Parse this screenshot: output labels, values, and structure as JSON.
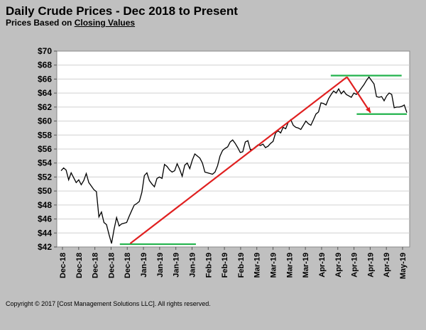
{
  "title": "Daily Crude Prices - Dec 2018 to Present",
  "subtitle_prefix": "Prices Based on ",
  "subtitle_emphasis": "Closing Values",
  "copyright": "Copyright © 2017 [Cost Management Solutions LLC]. All rights reserved.",
  "colors": {
    "background": "#c0c0c0",
    "plot_background": "#ffffff",
    "price_line": "#000000",
    "trend_line": "#e02020",
    "support_line": "#22b24c"
  },
  "chart_data": {
    "type": "line",
    "title": "Daily Crude Prices - Dec 2018 to Present",
    "ylabel": "",
    "xlabel": "",
    "ylim": [
      42,
      70
    ],
    "yticks": [
      "$42",
      "$44",
      "$46",
      "$48",
      "$50",
      "$52",
      "$54",
      "$56",
      "$58",
      "$60",
      "$62",
      "$64",
      "$66",
      "$68",
      "$70"
    ],
    "grid": "horizontal",
    "legend": "none",
    "x_tick_labels": [
      "Dec-18",
      "Dec-18",
      "Dec-18",
      "Dec-18",
      "Dec-18",
      "Jan-19",
      "Jan-19",
      "Jan-19",
      "Jan-19",
      "Feb-19",
      "Feb-19",
      "Feb-19",
      "Mar-19",
      "Mar-19",
      "Mar-19",
      "Mar-19",
      "Apr-19",
      "Apr-19",
      "Apr-19",
      "Apr-19",
      "Apr-19",
      "May-19"
    ],
    "series": [
      {
        "values": [
          52.9,
          53.3,
          53.0,
          51.6,
          52.6,
          51.9,
          51.2,
          51.6,
          50.9,
          51.5,
          52.5,
          51.2,
          50.7,
          50.2,
          49.9,
          46.3,
          47.0,
          45.5,
          45.2,
          43.8,
          42.5,
          44.5,
          46.2,
          45.0,
          45.3,
          45.4,
          45.5,
          46.4,
          47.2,
          48.0,
          48.2,
          48.5,
          49.8,
          52.2,
          52.6,
          51.5,
          51.0,
          50.6,
          51.8,
          52.0,
          51.8,
          53.8,
          53.5,
          53.0,
          52.7,
          52.9,
          53.9,
          53.1,
          52.1,
          53.7,
          54.0,
          53.2,
          54.4,
          55.3,
          55.0,
          54.7,
          54.0,
          52.7,
          52.6,
          52.5,
          52.4,
          52.7,
          53.6,
          55.0,
          55.8,
          56.1,
          56.3,
          57.0,
          57.3,
          56.8,
          56.2,
          55.5,
          55.6,
          57.0,
          57.2,
          55.9,
          56.0,
          56.3,
          56.6,
          56.5,
          56.7,
          56.2,
          56.4,
          56.8,
          57.1,
          58.3,
          58.6,
          58.3,
          59.1,
          58.9,
          59.8,
          60.2,
          59.4,
          59.1,
          59.0,
          58.8,
          59.4,
          60.0,
          59.6,
          59.4,
          60.2,
          61.0,
          61.3,
          62.6,
          62.5,
          62.3,
          63.2,
          63.8,
          64.3,
          64.0,
          64.6,
          63.9,
          64.3,
          63.8,
          63.6,
          63.4,
          64.0,
          63.8,
          64.2,
          64.7,
          65.2,
          65.8,
          66.3,
          65.8,
          65.3,
          63.5,
          63.4,
          63.5,
          62.9,
          63.6,
          64.0,
          63.8,
          61.9,
          62.0,
          62.0,
          62.1,
          62.3,
          61.2
        ]
      }
    ],
    "trend_lines": [
      {
        "x": [
          0.2,
          0.827
        ],
        "y": [
          42.5,
          66.3
        ]
      },
      {
        "x": [
          0.827,
          0.895
        ],
        "y": [
          66.3,
          61.2
        ]
      }
    ],
    "horizontal_levels": [
      {
        "x": [
          0.17,
          0.39
        ],
        "y": 42.4
      },
      {
        "x": [
          0.78,
          0.985
        ],
        "y": 66.5
      },
      {
        "x": [
          0.855,
          1.0
        ],
        "y": 61.0
      }
    ]
  }
}
